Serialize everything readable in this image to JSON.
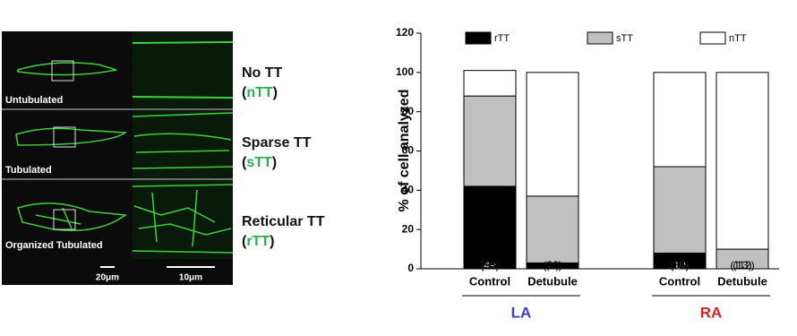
{
  "micrograph": {
    "panels": [
      "Untubulated",
      "Tubulated",
      "Organized  Tubulated"
    ],
    "scale_bars": [
      "20μm",
      "10μm"
    ],
    "bracket_open": "(",
    "bracket_close": ")",
    "abbr_color": "#22b14c",
    "tt_types": [
      {
        "name": "No TT",
        "abbr": "nTT"
      },
      {
        "name": "Sparse TT",
        "abbr": "sTT"
      },
      {
        "name": "Reticular TT",
        "abbr": "rTT"
      }
    ]
  },
  "chart_data": {
    "type": "stacked_bar",
    "y_label": "% of cell analyzed",
    "categories": [
      "Control",
      "Detubule",
      "Control",
      "Detubule"
    ],
    "groups": [
      {
        "label": "LA",
        "color": "#3b3bd6"
      },
      {
        "label": "RA",
        "color": "#e02020"
      }
    ],
    "series": [
      {
        "name": "rTT",
        "color": "#000000",
        "values": [
          42,
          3,
          8,
          0
        ],
        "count_labels": [
          "(49)",
          "(3)",
          "(10)",
          null
        ]
      },
      {
        "name": "sTT",
        "color": "#c0c0c0",
        "values": [
          46,
          34,
          44,
          10
        ],
        "count_labels": [
          "(53)",
          "(36)",
          "(51)",
          "(13)"
        ]
      },
      {
        "name": "nTT",
        "color": "#ffffff",
        "values": [
          13,
          63,
          48,
          90
        ],
        "count_labels": [
          "(15)",
          "(66)",
          "(56)",
          "(112)"
        ]
      }
    ],
    "ylim": [
      0,
      120
    ],
    "yticks": [
      0,
      20,
      40,
      60,
      80,
      100,
      120
    ]
  }
}
